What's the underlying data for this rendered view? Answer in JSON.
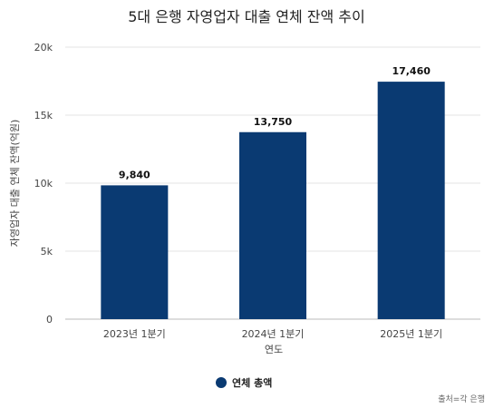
{
  "chart_data": {
    "type": "bar",
    "title": "5대 은행 자영업자 대출 연체 잔액 추이",
    "xlabel": "연도",
    "ylabel": "자영업자 대출 연체 잔액(억원)",
    "categories": [
      "2023년 1분기",
      "2024년 1분기",
      "2025년 1분기"
    ],
    "series": [
      {
        "name": "연체 총액",
        "values": [
          9840,
          13750,
          17460
        ],
        "color": "#0a3a72"
      }
    ],
    "data_labels": [
      "9,840",
      "13,750",
      "17,460"
    ],
    "ylim": [
      0,
      20000
    ],
    "yticks": [
      0,
      5000,
      10000,
      15000,
      20000
    ],
    "ytick_labels": [
      "0",
      "5k",
      "10k",
      "15k",
      "20k"
    ],
    "grid": true,
    "legend_position": "bottom-center"
  },
  "source_note": "출처=각 은행"
}
